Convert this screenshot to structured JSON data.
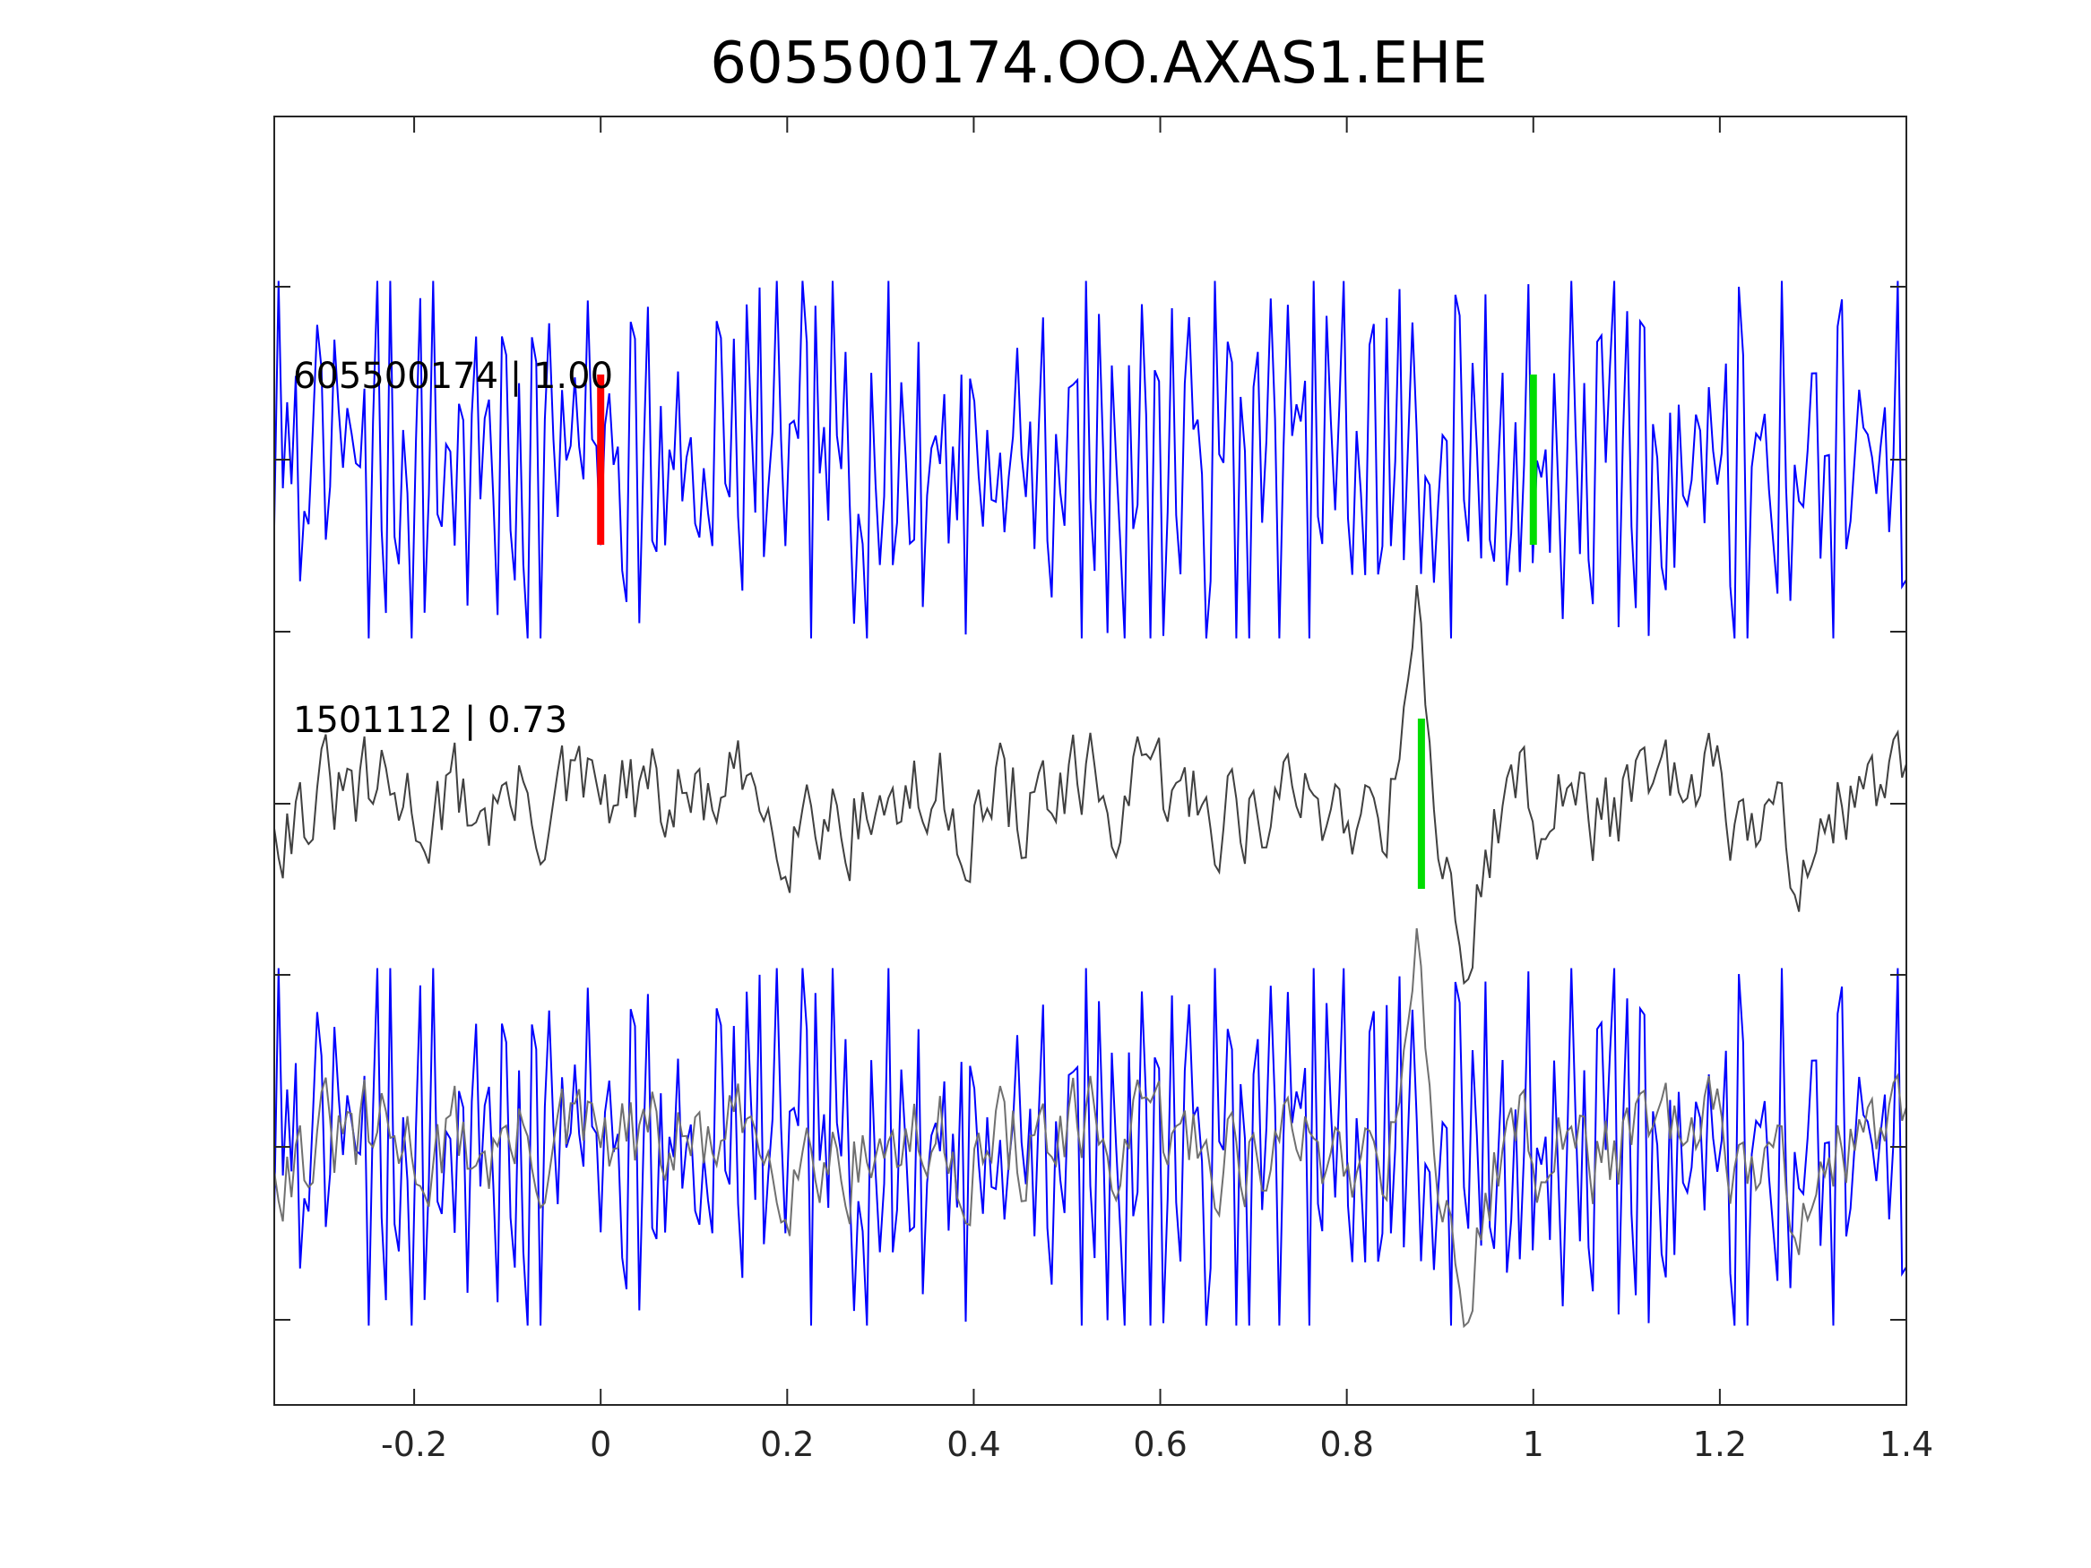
{
  "chart_data": {
    "type": "line",
    "title": "605500174.OO.AXAS1.EHE",
    "xlabel": "",
    "ylabel": "",
    "xlim": [
      -0.35,
      1.4
    ],
    "x_ticks": [
      -0.2,
      0,
      0.2,
      0.4,
      0.6,
      0.8,
      1,
      1.2,
      1.4
    ],
    "x_tick_labels": [
      "-0.2",
      "0",
      "0.2",
      "0.4",
      "0.6",
      "0.8",
      "1",
      "1.2",
      "1.4"
    ],
    "grid": false,
    "traces": [
      {
        "label": "605500174 | 1.00",
        "color": "#0000ff",
        "offset_rank": 0,
        "picks": [
          {
            "x": 0.0,
            "color": "#ff0000"
          },
          {
            "x": 1.0,
            "color": "#00dd00"
          }
        ]
      },
      {
        "label": "1501112 | 0.73",
        "color": "#404040",
        "offset_rank": 1,
        "picks": [
          {
            "x": 0.88,
            "color": "#00dd00"
          }
        ]
      }
    ],
    "overlay": {
      "offset_rank": 2,
      "series_colors": [
        "#0000ff",
        "#707070"
      ]
    },
    "colors": {
      "axes": "#262626",
      "trace_a": "#0000ff",
      "trace_b": "#404040",
      "overlay_b": "#707070",
      "pick_p": "#ff0000",
      "pick_s": "#00dd00"
    }
  }
}
